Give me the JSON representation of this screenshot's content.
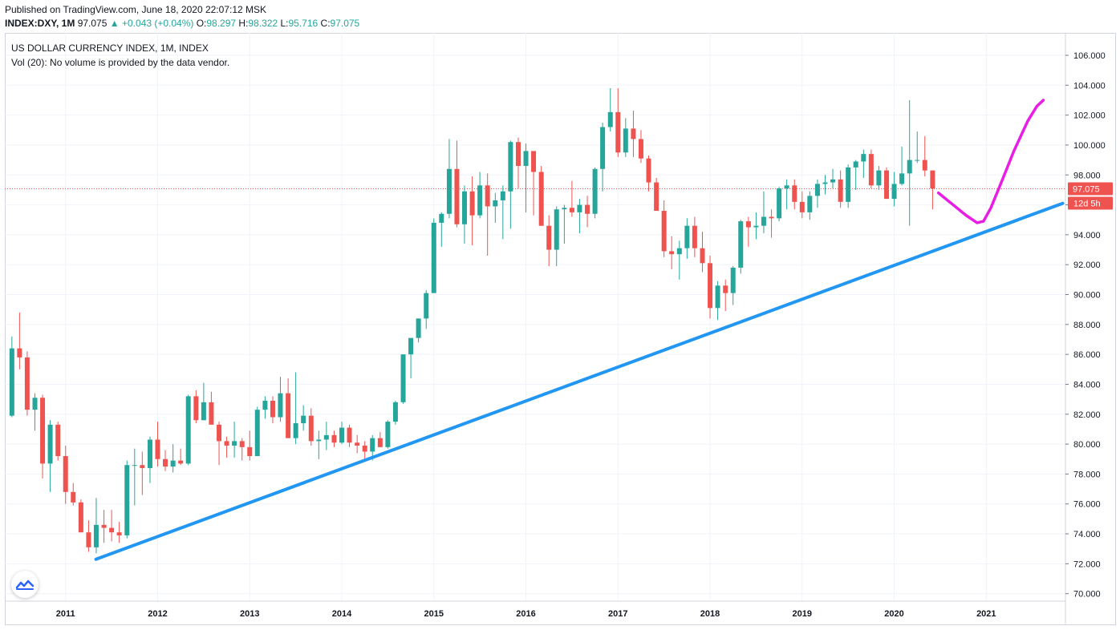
{
  "header": {
    "published": "Published on TradingView.com, June 18, 2020 22:07:12 MSK",
    "symbol": "INDEX:DXY, 1M",
    "last": "97.075",
    "change": "▲ +0.043 (+0.04%)",
    "o_label": "O:",
    "o_value": "98.297",
    "h_label": "H:",
    "h_value": "98.322",
    "l_label": "L:",
    "l_value": "95.716",
    "c_label": "C:",
    "c_value": "97.075"
  },
  "legend": {
    "title": "US DOLLAR CURRENCY INDEX, 1M, INDEX",
    "volume": "Vol (20): No volume is provided by the data vendor."
  },
  "price_badge": "97.075",
  "countdown_badge": "12d 5h",
  "colors": {
    "up": "#26a69a",
    "down": "#ef5350",
    "trendline": "#2196f3",
    "drawing": "#e91ee5",
    "grid": "#f0f3fa"
  },
  "chart_data": {
    "type": "candlestick",
    "title": "US DOLLAR CURRENCY INDEX, 1M, INDEX",
    "y_ticks": [
      "106.000",
      "104.000",
      "102.000",
      "100.000",
      "98.000",
      "96.000",
      "94.000",
      "92.000",
      "90.000",
      "88.000",
      "86.000",
      "84.000",
      "82.000",
      "80.000",
      "78.000",
      "76.000",
      "74.000",
      "72.000",
      "70.000"
    ],
    "x_ticks": [
      "2011",
      "2012",
      "2013",
      "2014",
      "2015",
      "2016",
      "2017",
      "2018",
      "2019",
      "2020",
      "2021"
    ],
    "ylim": [
      69.5,
      107.5
    ],
    "x_range": [
      2010.34,
      2021.86
    ],
    "ohlc": [
      [
        2010.417,
        81.9,
        87.2,
        81.8,
        86.4
      ],
      [
        2010.5,
        86.4,
        88.8,
        85.0,
        85.8
      ],
      [
        2010.583,
        85.8,
        86.2,
        81.9,
        82.3
      ],
      [
        2010.667,
        82.3,
        83.4,
        80.9,
        83.1
      ],
      [
        2010.75,
        83.1,
        83.3,
        77.7,
        78.7
      ],
      [
        2010.833,
        78.7,
        81.6,
        76.8,
        81.3
      ],
      [
        2010.917,
        81.3,
        81.5,
        78.9,
        79.2
      ],
      [
        2011.0,
        79.2,
        79.9,
        76.0,
        76.8
      ],
      [
        2011.083,
        76.8,
        77.4,
        75.9,
        76.1
      ],
      [
        2011.167,
        76.1,
        76.3,
        74.1,
        74.1
      ],
      [
        2011.25,
        74.1,
        74.9,
        72.8,
        73.1
      ],
      [
        2011.333,
        73.1,
        76.4,
        72.7,
        74.6
      ],
      [
        2011.417,
        74.6,
        75.6,
        73.4,
        74.4
      ],
      [
        2011.5,
        74.4,
        75.6,
        73.5,
        74.1
      ],
      [
        2011.583,
        74.1,
        74.8,
        73.4,
        73.9
      ],
      [
        2011.667,
        73.9,
        78.9,
        73.7,
        78.6
      ],
      [
        2011.75,
        78.6,
        79.7,
        75.9,
        78.6
      ],
      [
        2011.833,
        78.6,
        79.5,
        76.6,
        78.4
      ],
      [
        2011.917,
        78.4,
        80.5,
        77.4,
        80.3
      ],
      [
        2012.0,
        80.3,
        81.5,
        78.5,
        79.0
      ],
      [
        2012.083,
        79.0,
        79.6,
        78.2,
        78.5
      ],
      [
        2012.167,
        78.5,
        80.0,
        78.1,
        78.9
      ],
      [
        2012.25,
        78.9,
        79.7,
        78.6,
        78.7
      ],
      [
        2012.333,
        78.7,
        83.3,
        78.6,
        83.2
      ],
      [
        2012.417,
        83.2,
        83.6,
        81.4,
        81.6
      ],
      [
        2012.5,
        81.6,
        84.1,
        81.6,
        82.8
      ],
      [
        2012.583,
        82.8,
        83.5,
        81.4,
        81.3
      ],
      [
        2012.667,
        81.3,
        81.5,
        78.6,
        80.2
      ],
      [
        2012.75,
        80.2,
        80.5,
        79.1,
        79.9
      ],
      [
        2012.833,
        79.9,
        81.5,
        79.1,
        80.2
      ],
      [
        2012.917,
        80.2,
        80.4,
        78.9,
        79.8
      ],
      [
        2013.0,
        79.8,
        80.9,
        78.9,
        79.2
      ],
      [
        2013.083,
        79.2,
        82.5,
        79.3,
        82.3
      ],
      [
        2013.167,
        82.3,
        83.2,
        81.7,
        82.9
      ],
      [
        2013.25,
        82.9,
        83.2,
        81.4,
        81.8
      ],
      [
        2013.333,
        81.8,
        84.5,
        81.5,
        83.4
      ],
      [
        2013.417,
        83.4,
        84.4,
        80.5,
        80.4
      ],
      [
        2013.5,
        80.4,
        84.8,
        80.0,
        81.4
      ],
      [
        2013.583,
        81.4,
        82.6,
        80.9,
        81.9
      ],
      [
        2013.667,
        81.9,
        82.4,
        79.9,
        80.2
      ],
      [
        2013.75,
        80.2,
        80.9,
        79.0,
        80.3
      ],
      [
        2013.833,
        80.3,
        81.5,
        79.6,
        80.6
      ],
      [
        2013.917,
        80.6,
        80.9,
        79.8,
        80.1
      ],
      [
        2014.0,
        80.1,
        81.5,
        80.0,
        81.1
      ],
      [
        2014.083,
        81.1,
        81.3,
        79.8,
        80.1
      ],
      [
        2014.167,
        80.1,
        80.6,
        79.4,
        79.9
      ],
      [
        2014.25,
        79.9,
        80.2,
        78.9,
        79.5
      ],
      [
        2014.333,
        79.5,
        80.6,
        78.9,
        80.4
      ],
      [
        2014.417,
        80.4,
        80.8,
        79.8,
        79.8
      ],
      [
        2014.5,
        79.8,
        81.6,
        79.7,
        81.5
      ],
      [
        2014.583,
        81.5,
        82.9,
        81.3,
        82.8
      ],
      [
        2014.667,
        82.8,
        86.0,
        82.7,
        86.0
      ],
      [
        2014.75,
        86.0,
        86.8,
        84.4,
        87.1
      ],
      [
        2014.833,
        87.1,
        88.4,
        86.8,
        88.4
      ],
      [
        2014.917,
        88.4,
        90.3,
        87.7,
        90.1
      ],
      [
        2015.0,
        90.1,
        95.1,
        90.2,
        94.8
      ],
      [
        2015.083,
        94.8,
        95.5,
        93.2,
        95.4
      ],
      [
        2015.167,
        95.4,
        100.4,
        95.1,
        98.4
      ],
      [
        2015.25,
        98.4,
        100.3,
        94.5,
        94.7
      ],
      [
        2015.333,
        94.7,
        97.3,
        93.4,
        96.9
      ],
      [
        2015.417,
        96.9,
        97.9,
        93.3,
        95.3
      ],
      [
        2015.5,
        95.3,
        98.2,
        95.1,
        97.3
      ],
      [
        2015.583,
        97.3,
        98.1,
        92.6,
        95.9
      ],
      [
        2015.667,
        95.9,
        96.8,
        94.8,
        96.3
      ],
      [
        2015.75,
        96.3,
        97.3,
        93.7,
        96.9
      ],
      [
        2015.833,
        96.9,
        100.3,
        94.4,
        100.2
      ],
      [
        2015.917,
        100.2,
        100.5,
        97.1,
        98.6
      ],
      [
        2016.0,
        98.6,
        100.1,
        95.5,
        99.6
      ],
      [
        2016.083,
        99.6,
        99.5,
        95.3,
        98.2
      ],
      [
        2016.167,
        98.2,
        98.6,
        94.6,
        94.6
      ],
      [
        2016.25,
        94.6,
        95.3,
        91.9,
        93.0
      ],
      [
        2016.333,
        93.0,
        95.9,
        91.9,
        95.7
      ],
      [
        2016.417,
        95.7,
        96.0,
        93.4,
        95.8
      ],
      [
        2016.5,
        95.8,
        97.6,
        95.2,
        95.5
      ],
      [
        2016.583,
        95.5,
        96.4,
        94.1,
        96.0
      ],
      [
        2016.667,
        96.0,
        96.6,
        94.5,
        95.4
      ],
      [
        2016.75,
        95.4,
        98.5,
        95.1,
        98.4
      ],
      [
        2016.833,
        98.4,
        101.5,
        96.9,
        101.2
      ],
      [
        2016.917,
        101.2,
        103.8,
        100.9,
        102.2
      ],
      [
        2017.0,
        102.2,
        103.8,
        99.2,
        99.5
      ],
      [
        2017.083,
        99.5,
        101.8,
        99.2,
        101.1
      ],
      [
        2017.167,
        101.1,
        102.3,
        99.2,
        100.4
      ],
      [
        2017.25,
        100.4,
        101.0,
        98.8,
        99.1
      ],
      [
        2017.333,
        99.1,
        99.3,
        96.9,
        97.5
      ],
      [
        2017.417,
        97.5,
        97.8,
        95.9,
        95.6
      ],
      [
        2017.5,
        95.6,
        96.3,
        92.5,
        92.9
      ],
      [
        2017.583,
        92.9,
        93.9,
        91.7,
        92.7
      ],
      [
        2017.667,
        92.7,
        93.6,
        91.0,
        93.1
      ],
      [
        2017.75,
        93.1,
        95.1,
        92.4,
        94.6
      ],
      [
        2017.833,
        94.6,
        95.2,
        92.5,
        93.1
      ],
      [
        2017.917,
        93.1,
        94.2,
        91.5,
        92.1
      ],
      [
        2018.0,
        92.1,
        92.6,
        88.4,
        89.1
      ],
      [
        2018.083,
        89.1,
        90.9,
        88.3,
        90.6
      ],
      [
        2018.167,
        90.6,
        91.0,
        88.9,
        90.1
      ],
      [
        2018.25,
        90.1,
        91.9,
        89.3,
        91.8
      ],
      [
        2018.333,
        91.8,
        95.0,
        91.4,
        94.9
      ],
      [
        2018.417,
        94.9,
        95.2,
        93.2,
        94.5
      ],
      [
        2018.5,
        94.5,
        95.5,
        93.7,
        94.6
      ],
      [
        2018.583,
        94.6,
        96.9,
        94.1,
        95.2
      ],
      [
        2018.667,
        95.2,
        95.7,
        93.8,
        95.1
      ],
      [
        2018.75,
        95.1,
        97.2,
        94.9,
        97.1
      ],
      [
        2018.833,
        97.1,
        97.7,
        95.7,
        97.3
      ],
      [
        2018.917,
        97.3,
        97.7,
        95.7,
        96.2
      ],
      [
        2019.0,
        96.2,
        96.9,
        95.1,
        95.5
      ],
      [
        2019.083,
        95.5,
        96.9,
        95.0,
        96.6
      ],
      [
        2019.167,
        96.6,
        97.7,
        95.8,
        97.4
      ],
      [
        2019.25,
        97.4,
        98.0,
        96.7,
        97.5
      ],
      [
        2019.333,
        97.5,
        98.4,
        97.1,
        97.7
      ],
      [
        2019.417,
        97.7,
        98.3,
        95.8,
        96.2
      ],
      [
        2019.5,
        96.2,
        98.7,
        95.8,
        98.5
      ],
      [
        2019.583,
        98.5,
        99.0,
        97.0,
        98.9
      ],
      [
        2019.667,
        98.9,
        99.7,
        97.8,
        99.4
      ],
      [
        2019.75,
        99.4,
        99.7,
        97.1,
        97.3
      ],
      [
        2019.833,
        97.3,
        98.6,
        97.0,
        98.3
      ],
      [
        2019.917,
        98.3,
        98.5,
        96.4,
        96.4
      ],
      [
        2020.0,
        96.4,
        98.2,
        95.9,
        97.4
      ],
      [
        2020.083,
        97.4,
        99.9,
        97.3,
        98.1
      ],
      [
        2020.167,
        98.1,
        103.0,
        94.6,
        99.0
      ],
      [
        2020.25,
        99.0,
        100.9,
        98.8,
        99.0
      ],
      [
        2020.333,
        99.0,
        100.6,
        97.9,
        98.3
      ],
      [
        2020.417,
        98.3,
        98.3,
        95.7,
        97.1
      ]
    ],
    "current_price": 97.075,
    "trendline": [
      [
        2011.33,
        72.3
      ],
      [
        2021.83,
        96.1
      ]
    ],
    "drawing": [
      [
        2020.48,
        96.8
      ],
      [
        2020.62,
        96.1
      ],
      [
        2020.78,
        95.3
      ],
      [
        2020.9,
        94.8
      ],
      [
        2020.97,
        94.9
      ],
      [
        2021.05,
        95.8
      ],
      [
        2021.17,
        97.6
      ],
      [
        2021.3,
        99.6
      ],
      [
        2021.45,
        101.6
      ],
      [
        2021.55,
        102.6
      ],
      [
        2021.62,
        103.0
      ]
    ]
  }
}
